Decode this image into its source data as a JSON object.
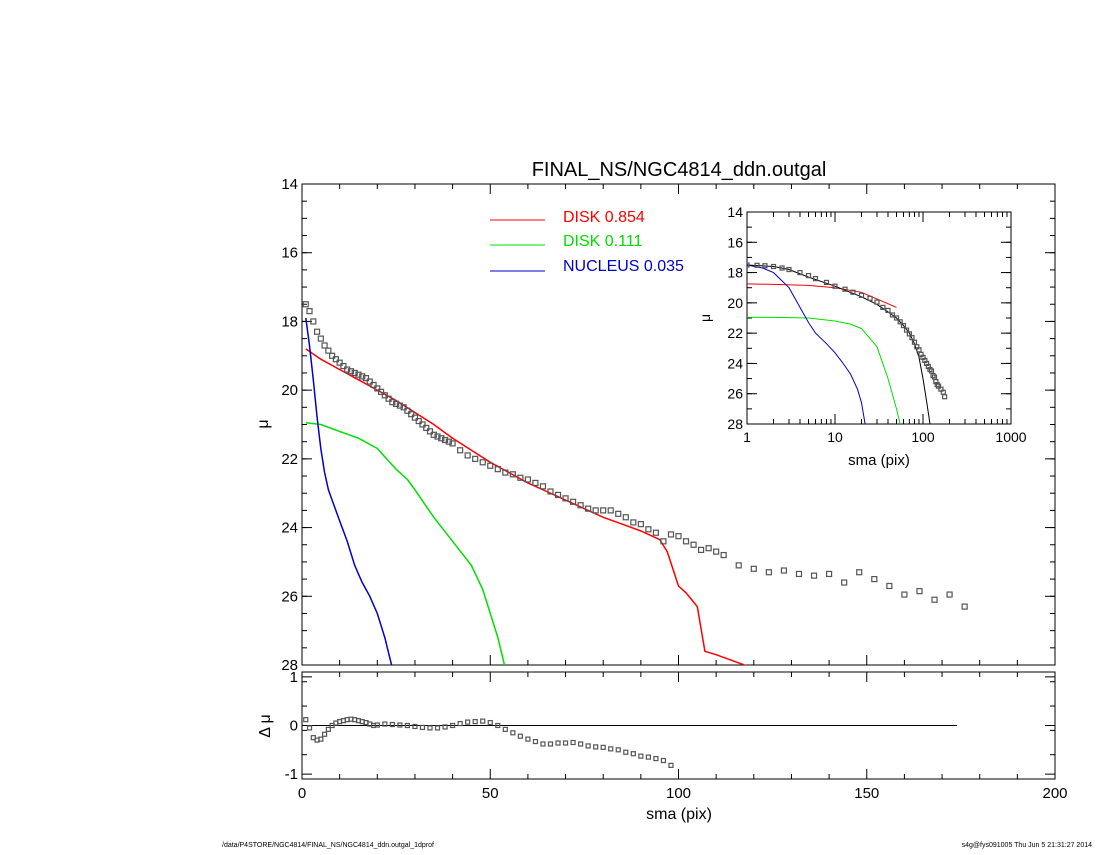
{
  "colors": {
    "disk1": "#ff0000",
    "disk2": "#00e000",
    "nucleus": "#0000cc",
    "total": "#000000",
    "data": "#555555"
  },
  "footer": {
    "left": "/data/P4STORE/NGC4814/FINAL_NS/NGC4814_ddn.outgal_1dprof",
    "right": "s4g@fys091005  Thu Jun  5 21:31:27 2014"
  },
  "chart_data": [
    {
      "id": "main",
      "type": "line",
      "title": "FINAL_NS/NGC4814_ddn.outgal",
      "xlabel": "",
      "ylabel": "μ",
      "xlim": [
        0,
        200
      ],
      "ylim": [
        28,
        14
      ],
      "y_inverted": true,
      "yticks": [
        "14",
        "16",
        "18",
        "20",
        "22",
        "24",
        "26",
        "28"
      ],
      "legend": [
        {
          "label": "DISK  0.854",
          "color": "#ff0000"
        },
        {
          "label": "DISK  0.111",
          "color": "#00e000"
        },
        {
          "label": "NUCLEUS  0.035",
          "color": "#0000cc"
        }
      ],
      "series": [
        {
          "name": "DISK  0.854",
          "color": "#ff0000",
          "x": [
            1,
            5,
            10,
            15,
            20,
            25,
            30,
            35,
            40,
            45,
            50,
            55,
            60,
            65,
            70,
            75,
            80,
            85,
            90,
            95,
            97,
            100,
            102,
            105,
            107,
            110,
            115,
            120
          ],
          "y": [
            18.8,
            19.1,
            19.4,
            19.7,
            20.0,
            20.3,
            20.65,
            21.0,
            21.4,
            21.75,
            22.1,
            22.4,
            22.7,
            22.95,
            23.2,
            23.45,
            23.7,
            23.9,
            24.1,
            24.35,
            24.7,
            25.7,
            25.9,
            26.3,
            27.6,
            27.7,
            27.9,
            28.1
          ]
        },
        {
          "name": "DISK  0.111",
          "color": "#00e000",
          "x": [
            1,
            5,
            10,
            15,
            20,
            25,
            28,
            30,
            35,
            40,
            45,
            48,
            50,
            52,
            54
          ],
          "y": [
            20.95,
            21.0,
            21.2,
            21.4,
            21.7,
            22.3,
            22.6,
            22.9,
            23.7,
            24.4,
            25.1,
            25.8,
            26.5,
            27.2,
            28.1
          ]
        },
        {
          "name": "NUCLEUS  0.035",
          "color": "#0000cc",
          "x": [
            1,
            2,
            3,
            4,
            5,
            6,
            7,
            8,
            10,
            12,
            14,
            16,
            18,
            20,
            22,
            24
          ],
          "y": [
            17.9,
            18.7,
            19.7,
            20.8,
            21.7,
            22.4,
            22.9,
            23.2,
            23.8,
            24.4,
            25.1,
            25.6,
            26.0,
            26.5,
            27.2,
            28.1
          ]
        },
        {
          "name": "",
          "color": "#555555",
          "type": "scatter",
          "x": [
            1,
            2,
            3,
            4,
            5,
            6,
            7,
            8,
            9,
            10,
            11,
            12,
            13,
            14,
            15,
            16,
            17,
            18,
            19,
            20,
            21,
            22,
            23,
            24,
            25,
            26,
            27,
            28,
            29,
            30,
            31,
            32,
            33,
            34,
            35,
            36,
            37,
            38,
            39,
            40,
            42,
            44,
            46,
            48,
            50,
            52,
            54,
            56,
            58,
            60,
            62,
            64,
            66,
            68,
            70,
            72,
            74,
            76,
            78,
            80,
            82,
            84,
            86,
            88,
            90,
            92,
            94,
            96,
            98,
            100,
            102,
            104,
            106,
            108,
            110,
            112,
            116,
            120,
            124,
            128,
            132,
            136,
            140,
            144,
            148,
            152,
            156,
            160,
            164,
            168,
            172,
            176
          ],
          "y": [
            17.5,
            17.7,
            18.0,
            18.3,
            18.5,
            18.7,
            18.85,
            19.0,
            19.1,
            19.2,
            19.3,
            19.4,
            19.45,
            19.5,
            19.55,
            19.6,
            19.65,
            19.75,
            19.85,
            19.95,
            20.05,
            20.15,
            20.25,
            20.35,
            20.4,
            20.45,
            20.5,
            20.6,
            20.7,
            20.8,
            20.9,
            21.0,
            21.1,
            21.2,
            21.3,
            21.35,
            21.4,
            21.45,
            21.5,
            21.55,
            21.75,
            21.9,
            22.0,
            22.1,
            22.2,
            22.3,
            22.4,
            22.45,
            22.55,
            22.6,
            22.7,
            22.8,
            22.95,
            23.05,
            23.15,
            23.25,
            23.35,
            23.45,
            23.5,
            23.5,
            23.5,
            23.6,
            23.7,
            23.85,
            23.9,
            24.05,
            24.15,
            24.4,
            24.2,
            24.25,
            24.4,
            24.5,
            24.65,
            24.6,
            24.7,
            24.8,
            25.1,
            25.2,
            25.3,
            25.25,
            25.35,
            25.4,
            25.35,
            25.6,
            25.3,
            25.5,
            25.7,
            25.95,
            25.85,
            26.1,
            25.95,
            26.3
          ]
        }
      ]
    },
    {
      "id": "residual",
      "type": "line",
      "xlabel": "sma (pix)",
      "ylabel": "Δ μ",
      "xlim": [
        0,
        200
      ],
      "ylim": [
        -1.1,
        1.1
      ],
      "xticks": [
        "0",
        "50",
        "100",
        "150",
        "200"
      ],
      "yticks": [
        "-1",
        "0",
        "1"
      ],
      "series": [
        {
          "name": "",
          "color": "#000000",
          "x": [
            0,
            174
          ],
          "y": [
            0,
            0
          ]
        },
        {
          "name": "",
          "color": "#555555",
          "type": "scatter",
          "x": [
            1,
            2,
            3,
            4,
            5,
            6,
            7,
            8,
            9,
            10,
            11,
            12,
            13,
            14,
            15,
            16,
            17,
            18,
            19,
            20,
            22,
            24,
            26,
            28,
            30,
            32,
            34,
            36,
            38,
            40,
            42,
            44,
            46,
            48,
            50,
            52,
            54,
            56,
            58,
            60,
            62,
            64,
            66,
            68,
            70,
            72,
            74,
            76,
            78,
            80,
            82,
            84,
            86,
            88,
            90,
            92,
            94,
            96,
            98
          ],
          "y": [
            0.12,
            -0.05,
            -0.25,
            -0.3,
            -0.28,
            -0.18,
            -0.08,
            0.0,
            0.05,
            0.08,
            0.1,
            0.12,
            0.13,
            0.12,
            0.1,
            0.08,
            0.06,
            0.03,
            0.0,
            0.01,
            0.03,
            0.02,
            0.01,
            0.0,
            -0.02,
            -0.04,
            -0.05,
            -0.05,
            -0.03,
            0.0,
            0.04,
            0.07,
            0.08,
            0.09,
            0.06,
            0.0,
            -0.08,
            -0.15,
            -0.22,
            -0.28,
            -0.33,
            -0.38,
            -0.38,
            -0.36,
            -0.36,
            -0.35,
            -0.38,
            -0.42,
            -0.44,
            -0.45,
            -0.48,
            -0.5,
            -0.55,
            -0.58,
            -0.63,
            -0.65,
            -0.68,
            -0.72,
            -0.82
          ]
        }
      ]
    },
    {
      "id": "inset",
      "type": "line",
      "xlabel": "sma (pix)",
      "ylabel": "μ",
      "xscale": "log",
      "xlim": [
        1,
        1000
      ],
      "ylim": [
        28,
        14
      ],
      "y_inverted": true,
      "xticks": [
        "1",
        "10",
        "100",
        "1000"
      ],
      "yticks": [
        "14",
        "16",
        "18",
        "20",
        "22",
        "24",
        "26",
        "28"
      ],
      "series": [
        {
          "name": "",
          "color": "#ff0000",
          "x": [
            1,
            2,
            5,
            10,
            20,
            50
          ],
          "y": [
            18.75,
            18.78,
            18.85,
            19.0,
            19.3,
            20.3
          ]
        },
        {
          "name": "",
          "color": "#00e000",
          "x": [
            1,
            2,
            5,
            10,
            15,
            20,
            30,
            40,
            50,
            55
          ],
          "y": [
            20.95,
            20.96,
            21.0,
            21.2,
            21.4,
            21.7,
            22.9,
            25.0,
            27.0,
            28.0
          ]
        },
        {
          "name": "",
          "color": "#0000cc",
          "x": [
            1,
            1.5,
            2,
            3,
            4,
            5,
            6,
            8,
            10,
            12,
            15,
            18,
            20,
            22
          ],
          "y": [
            17.5,
            17.7,
            18.0,
            19.0,
            20.3,
            21.3,
            22.0,
            22.7,
            23.3,
            23.9,
            24.7,
            25.7,
            26.6,
            28.0
          ]
        },
        {
          "name": "",
          "color": "#000000",
          "x": [
            1,
            2,
            3,
            5,
            10,
            20,
            30,
            40,
            50,
            60,
            70,
            80,
            90,
            100,
            110,
            120
          ],
          "y": [
            17.5,
            17.6,
            17.8,
            18.3,
            18.9,
            19.6,
            20.1,
            20.6,
            21.0,
            21.5,
            22.0,
            22.7,
            23.6,
            25.0,
            26.5,
            28.0
          ]
        },
        {
          "name": "",
          "color": "#555555",
          "type": "scatter",
          "x": [
            1,
            1.3,
            1.6,
            2,
            2.5,
            3,
            4,
            5,
            6,
            8,
            10,
            13,
            16,
            20,
            25,
            30,
            35,
            40,
            45,
            50,
            55,
            60,
            65,
            70,
            75,
            80,
            85,
            90,
            95,
            100,
            105,
            110,
            115,
            120,
            125,
            130,
            135,
            140,
            145,
            150,
            160,
            170,
            176
          ],
          "y": [
            17.5,
            17.52,
            17.55,
            17.6,
            17.7,
            17.8,
            18.0,
            18.2,
            18.4,
            18.65,
            18.9,
            19.1,
            19.3,
            19.5,
            19.7,
            19.95,
            20.3,
            20.5,
            20.8,
            21.0,
            21.25,
            21.5,
            21.8,
            22.05,
            22.3,
            22.6,
            22.9,
            23.1,
            23.4,
            23.6,
            23.8,
            24.0,
            24.2,
            24.4,
            24.5,
            24.8,
            24.9,
            25.2,
            25.4,
            25.5,
            25.7,
            25.9,
            26.2
          ]
        }
      ]
    }
  ]
}
